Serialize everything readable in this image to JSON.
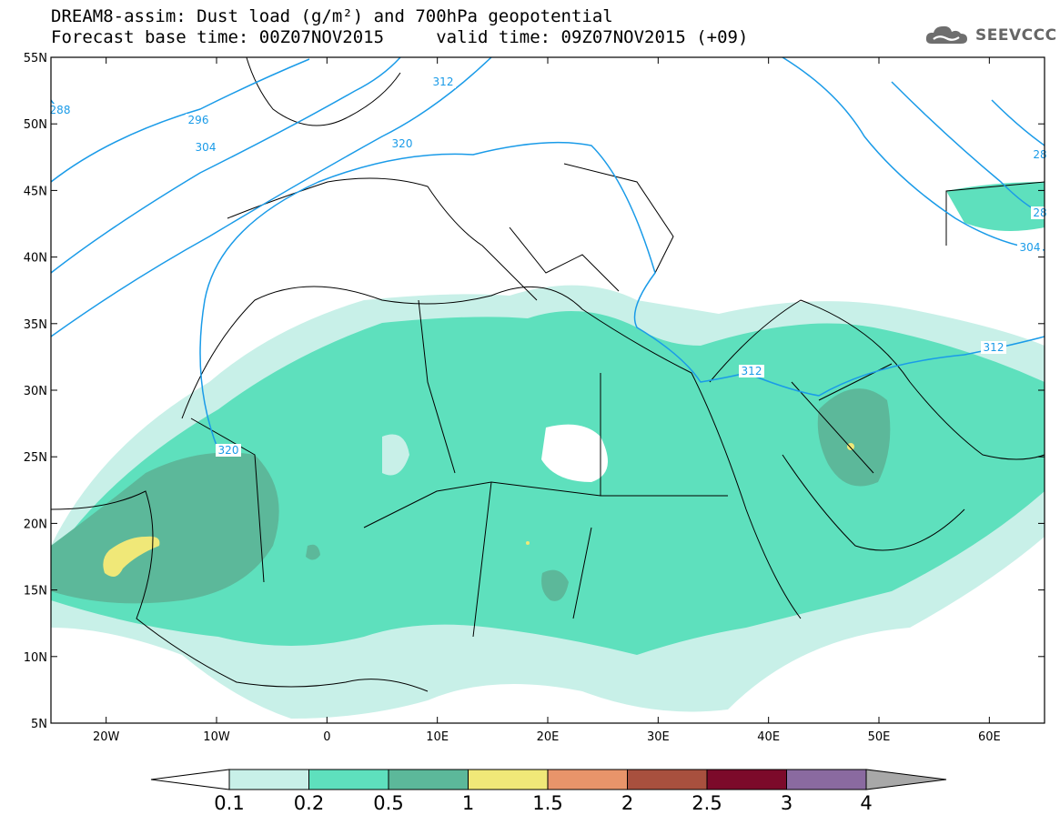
{
  "title": {
    "line1": "DREAM8-assim: Dust load (g/m²) and 700hPa geopotential",
    "line2": "Forecast base time: 00Z07NOV2015     valid time: 09Z07NOV2015 (+09)"
  },
  "logo": {
    "text": "SEEVCCC",
    "icon": "cloud-icon"
  },
  "map": {
    "lon_range": [
      -25,
      65
    ],
    "lat_range": [
      5,
      55
    ],
    "x_ticks": [
      "20W",
      "10W",
      "0",
      "10E",
      "20E",
      "30E",
      "40E",
      "50E",
      "60E"
    ],
    "y_ticks": [
      "55N",
      "50N",
      "45N",
      "40N",
      "35N",
      "30N",
      "25N",
      "20N",
      "15N",
      "10N",
      "5N"
    ],
    "contour_labels": [
      "288",
      "296",
      "304",
      "312",
      "320",
      "320",
      "312",
      "312",
      "304",
      "28",
      "28"
    ],
    "contour_color": "#1a9be8"
  },
  "legend": {
    "labels": [
      "0.1",
      "0.2",
      "0.5",
      "1",
      "1.5",
      "2",
      "2.5",
      "3",
      "4"
    ],
    "colors": [
      "#ffffff",
      "#c8f0e8",
      "#5ee0bd",
      "#5cb89a",
      "#f0e878",
      "#e8946a",
      "#a8503e",
      "#7c0a2a",
      "#8a6aa0",
      "#a8a8a8"
    ]
  }
}
